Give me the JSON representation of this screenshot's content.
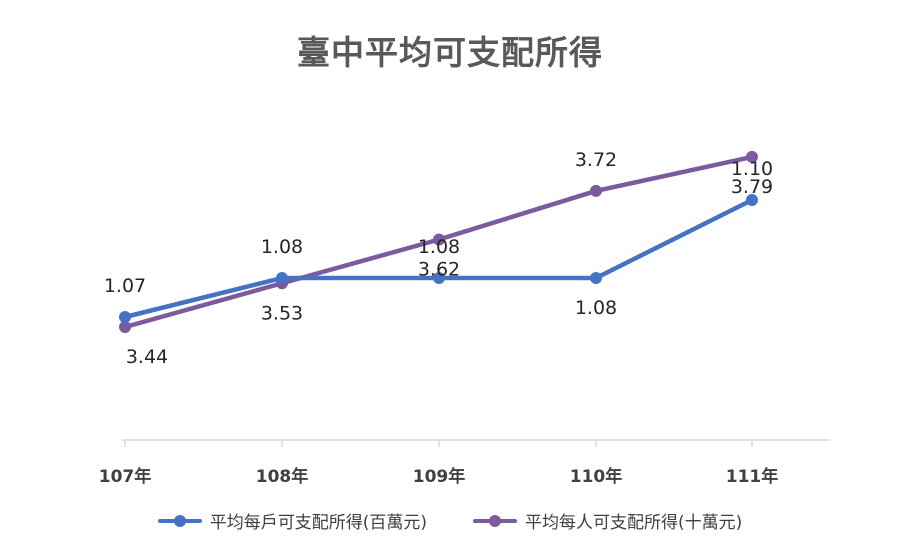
{
  "chart_data": {
    "type": "line",
    "title": "臺中平均可支配所得",
    "categories": [
      "107年",
      "108年",
      "109年",
      "110年",
      "111年"
    ],
    "series": [
      {
        "name": "平均每戶可支配所得(百萬元)",
        "color": "#4472C4",
        "values": [
          1.07,
          1.08,
          1.08,
          1.08,
          1.1
        ],
        "labels": [
          "1.07",
          "1.08",
          "1.08",
          "1.08",
          "1.10"
        ],
        "label_positions": [
          "above",
          "above",
          "above",
          "below",
          "above"
        ]
      },
      {
        "name": "平均每人可支配所得(十萬元)",
        "color": "#7B5A9E",
        "values": [
          3.44,
          3.53,
          3.62,
          3.72,
          3.79
        ],
        "labels": [
          "3.44",
          "3.53",
          "3.62",
          "3.72",
          "3.79"
        ],
        "label_positions": [
          "below",
          "below",
          "below",
          "above",
          "below"
        ]
      }
    ],
    "legend_position": "bottom",
    "grid": false
  }
}
